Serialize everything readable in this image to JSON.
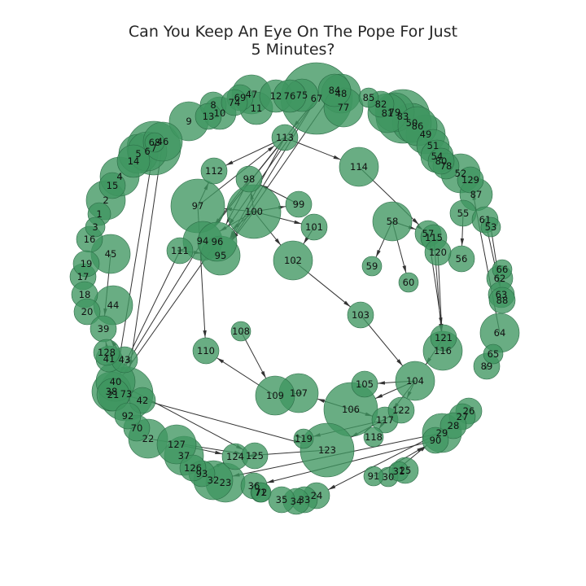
{
  "title": {
    "line1": "Can You Keep An Eye On The Pope For Just",
    "line2": "5 Minutes?"
  },
  "colors": {
    "node_fill": "#3f9660",
    "node_stroke": "#2a6b45",
    "edge": "#333333",
    "label": "#111111"
  },
  "nodes": [
    "1",
    "2",
    "3",
    "4",
    "5",
    "6",
    "7",
    "8",
    "9",
    "10",
    "11",
    "12",
    "13",
    "14",
    "15",
    "16",
    "17",
    "18",
    "19",
    "20",
    "21",
    "22",
    "23",
    "24",
    "25",
    "26",
    "27",
    "28",
    "29",
    "30",
    "31",
    "32",
    "33",
    "34",
    "35",
    "36",
    "37",
    "38",
    "39",
    "40",
    "41",
    "42",
    "43",
    "44",
    "45",
    "46",
    "47",
    "48",
    "49",
    "50",
    "51",
    "52",
    "53",
    "54",
    "55",
    "56",
    "57",
    "58",
    "59",
    "60",
    "61",
    "62",
    "63",
    "64",
    "65",
    "66",
    "67",
    "68",
    "69",
    "70",
    "71",
    "72",
    "73",
    "74",
    "75",
    "76",
    "77",
    "78",
    "79",
    "80",
    "81",
    "82",
    "83",
    "84",
    "85",
    "86",
    "87",
    "88",
    "89",
    "90",
    "91",
    "92",
    "93",
    "94",
    "95",
    "96",
    "97",
    "98",
    "99",
    "100",
    "101",
    "102",
    "103",
    "104",
    "105",
    "106",
    "107",
    "108",
    "109",
    "110",
    "111",
    "112",
    "113",
    "114",
    "115",
    "116",
    "117",
    "118",
    "119",
    "120",
    "121",
    "122",
    "123",
    "124",
    "125",
    "126",
    "127",
    "128",
    "129"
  ],
  "edges": [
    [
      "100",
      "97"
    ],
    [
      "100",
      "98"
    ],
    [
      "100",
      "99"
    ],
    [
      "100",
      "101"
    ],
    [
      "100",
      "102"
    ],
    [
      "100",
      "94"
    ],
    [
      "100",
      "95"
    ],
    [
      "100",
      "96"
    ],
    [
      "97",
      "112"
    ],
    [
      "97",
      "113"
    ],
    [
      "97",
      "110"
    ],
    [
      "113",
      "112"
    ],
    [
      "113",
      "114"
    ],
    [
      "113",
      "95"
    ],
    [
      "113",
      "94"
    ],
    [
      "67",
      "113"
    ],
    [
      "67",
      "96"
    ],
    [
      "67",
      "94"
    ],
    [
      "67",
      "95"
    ],
    [
      "84",
      "95"
    ],
    [
      "98",
      "94"
    ],
    [
      "98",
      "96"
    ],
    [
      "99",
      "98"
    ],
    [
      "101",
      "102"
    ],
    [
      "102",
      "103"
    ],
    [
      "103",
      "104"
    ],
    [
      "114",
      "57"
    ],
    [
      "58",
      "59"
    ],
    [
      "58",
      "60"
    ],
    [
      "58",
      "57"
    ],
    [
      "57",
      "115"
    ],
    [
      "57",
      "121"
    ],
    [
      "115",
      "116"
    ],
    [
      "120",
      "116"
    ],
    [
      "121",
      "104"
    ],
    [
      "104",
      "105"
    ],
    [
      "104",
      "106"
    ],
    [
      "104",
      "122"
    ],
    [
      "104",
      "117"
    ],
    [
      "106",
      "107"
    ],
    [
      "106",
      "117"
    ],
    [
      "107",
      "109"
    ],
    [
      "109",
      "110"
    ],
    [
      "108",
      "109"
    ],
    [
      "117",
      "118"
    ],
    [
      "117",
      "119"
    ],
    [
      "122",
      "123"
    ],
    [
      "119",
      "123"
    ],
    [
      "123",
      "124"
    ],
    [
      "125",
      "124"
    ],
    [
      "127",
      "124"
    ],
    [
      "93",
      "124"
    ],
    [
      "22",
      "125"
    ],
    [
      "40",
      "125"
    ],
    [
      "38",
      "123"
    ],
    [
      "111",
      "95"
    ],
    [
      "111",
      "94"
    ],
    [
      "111",
      "38"
    ],
    [
      "94",
      "40"
    ],
    [
      "96",
      "38"
    ],
    [
      "7",
      "40"
    ],
    [
      "46",
      "73"
    ],
    [
      "41",
      "39"
    ],
    [
      "43",
      "39"
    ],
    [
      "45",
      "39"
    ],
    [
      "29",
      "32"
    ],
    [
      "90",
      "36"
    ],
    [
      "30",
      "29"
    ],
    [
      "91",
      "90"
    ],
    [
      "28",
      "24"
    ],
    [
      "27",
      "90"
    ],
    [
      "26",
      "28"
    ],
    [
      "61",
      "63"
    ],
    [
      "55",
      "56"
    ],
    [
      "53",
      "88"
    ],
    [
      "64",
      "129"
    ],
    [
      "89",
      "65"
    ],
    [
      "86",
      "54"
    ],
    [
      "83",
      "51"
    ],
    [
      "79",
      "50"
    ]
  ]
}
